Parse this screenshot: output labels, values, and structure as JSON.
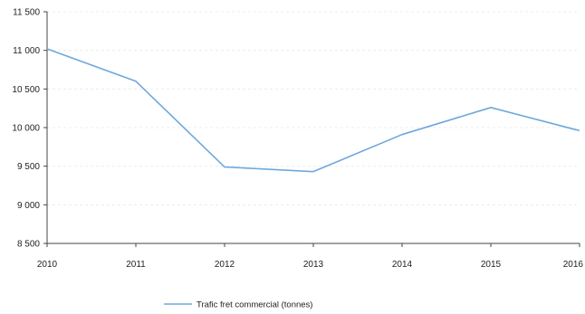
{
  "chart_data": {
    "type": "line",
    "title": "",
    "xlabel": "",
    "ylabel": "",
    "categories": [
      "2010",
      "2011",
      "2012",
      "2013",
      "2014",
      "2015",
      "2016"
    ],
    "ylim": [
      8500,
      11500
    ],
    "yticks": [
      8500,
      9000,
      9500,
      10000,
      10500,
      11000,
      11500
    ],
    "ytick_labels": [
      "8 500",
      "9 000",
      "9 500",
      "10 000",
      "10 500",
      "11 000",
      "11 500"
    ],
    "grid": true,
    "legend_position": "bottom",
    "series": [
      {
        "name": "Trafic fret commercial (tonnes)",
        "color": "#6fa8dc",
        "values": [
          11020,
          10600,
          9490,
          9430,
          9910,
          10260,
          9960
        ]
      }
    ]
  }
}
